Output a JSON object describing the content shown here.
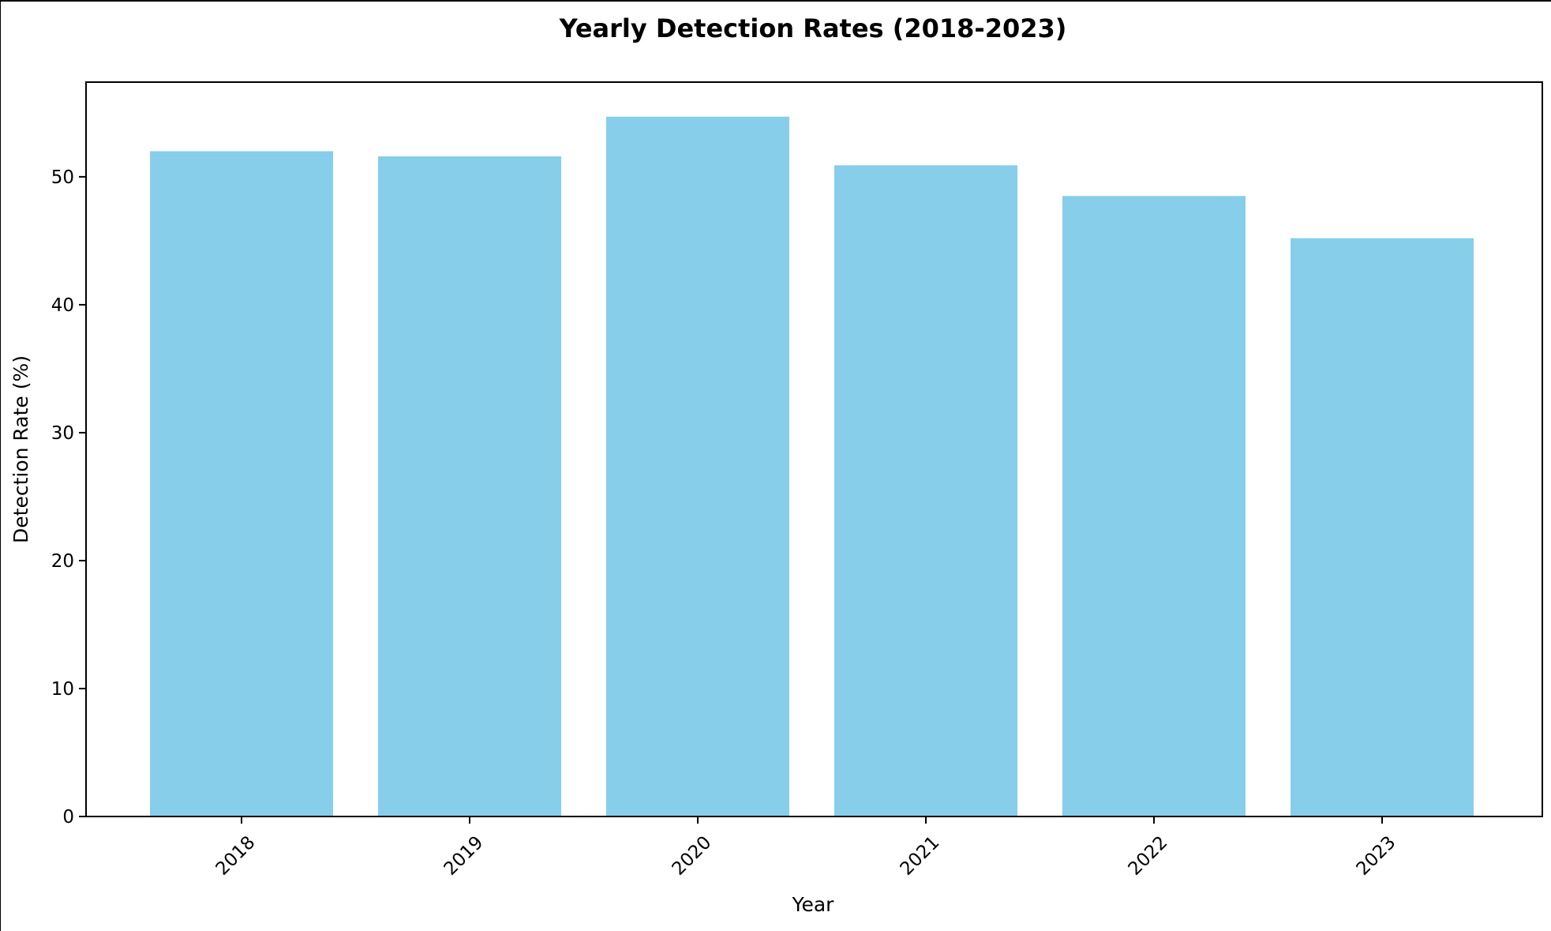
{
  "chart_data": {
    "type": "bar",
    "title": "Yearly Detection Rates (2018-2023)",
    "xlabel": "Year",
    "ylabel": "Detection Rate (%)",
    "categories": [
      "2018",
      "2019",
      "2020",
      "2021",
      "2022",
      "2023"
    ],
    "values": [
      52.0,
      51.6,
      54.7,
      50.9,
      48.5,
      45.2
    ],
    "ylim": [
      0,
      57.4
    ],
    "yticks": [
      0,
      10,
      20,
      30,
      40,
      50
    ],
    "grid": false,
    "bar_color": "#87CEEB",
    "x_tick_rotation_deg": 45
  }
}
